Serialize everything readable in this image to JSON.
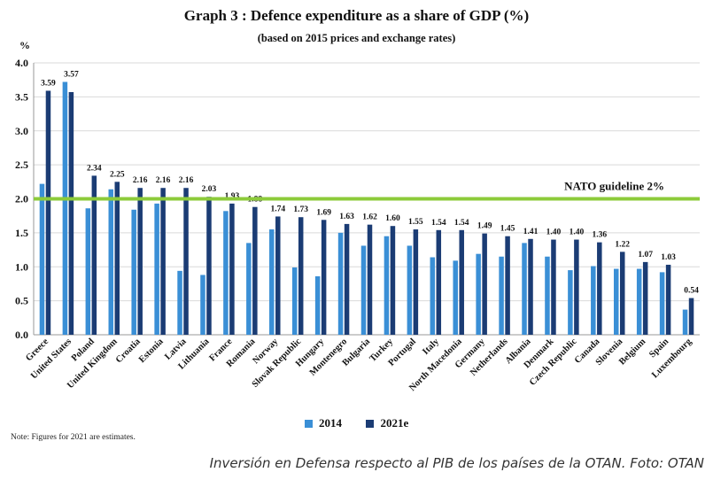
{
  "header": {
    "title": "Graph 3 : Defence expenditure as a share of GDP (%)",
    "subtitle": "(based on 2015 prices and exchange rates)",
    "y_unit": "%"
  },
  "footer": {
    "note": "Note: Figures for 2021 are estimates.",
    "caption": "Inversión en Defensa respecto al PIB de los países de la OTAN. Foto: OTAN"
  },
  "colors": {
    "series_2014": "#3A8FD6",
    "series_2021": "#1B3C74",
    "guideline": "#8CCB3A",
    "grid": "#D9D9D9"
  },
  "chart_data": {
    "type": "bar",
    "title": "Graph 3 : Defence expenditure as a share of GDP (%)",
    "subtitle": "(based on 2015 prices and exchange rates)",
    "ylabel": "%",
    "xlabel": "",
    "ylim": [
      0,
      4.0
    ],
    "yticks": [
      "0.0",
      "0.5",
      "1.0",
      "1.5",
      "2.0",
      "2.5",
      "3.0",
      "3.5",
      "4.0"
    ],
    "grid": true,
    "legend_position": "bottom-center",
    "categories": [
      "Greece",
      "United States",
      "Poland",
      "United Kingdom",
      "Croatia",
      "Estonia",
      "Latvia",
      "Lithuania",
      "France",
      "Romania",
      "Norway",
      "Slovak Republic",
      "Hungary",
      "Montenegro",
      "Bulgaria",
      "Turkey",
      "Portugal",
      "Italy",
      "North Macedonia",
      "Germany",
      "Netherlands",
      "Albania",
      "Denmark",
      "Czech Republic",
      "Canada",
      "Slovenia",
      "Belgium",
      "Spain",
      "Luxembourg"
    ],
    "series": [
      {
        "name": "2014",
        "values": [
          2.22,
          3.72,
          1.86,
          2.14,
          1.84,
          1.93,
          0.94,
          0.88,
          1.82,
          1.35,
          1.55,
          0.99,
          0.86,
          1.5,
          1.31,
          1.45,
          1.31,
          1.14,
          1.09,
          1.19,
          1.15,
          1.35,
          1.15,
          0.95,
          1.01,
          0.97,
          0.97,
          0.92,
          0.37
        ]
      },
      {
        "name": "2021e",
        "values": [
          3.59,
          3.57,
          2.34,
          2.25,
          2.16,
          2.16,
          2.16,
          2.03,
          1.93,
          1.88,
          1.74,
          1.73,
          1.69,
          1.63,
          1.62,
          1.6,
          1.55,
          1.54,
          1.54,
          1.49,
          1.45,
          1.41,
          1.4,
          1.4,
          1.36,
          1.22,
          1.07,
          1.03,
          0.54
        ]
      }
    ],
    "data_labels": [
      "3.59",
      "3.57",
      "2.34",
      "2.25",
      "2.16",
      "2.16",
      "2.16",
      "2.03",
      "1.93",
      "1.88",
      "1.74",
      "1.73",
      "1.69",
      "1.63",
      "1.62",
      "1.60",
      "1.55",
      "1.54",
      "1.54",
      "1.49",
      "1.45",
      "1.41",
      "1.40",
      "1.40",
      "1.36",
      "1.22",
      "1.07",
      "1.03",
      "0.54"
    ],
    "annotations": [
      {
        "text": "NATO guideline 2%",
        "y": 2.0
      }
    ]
  }
}
